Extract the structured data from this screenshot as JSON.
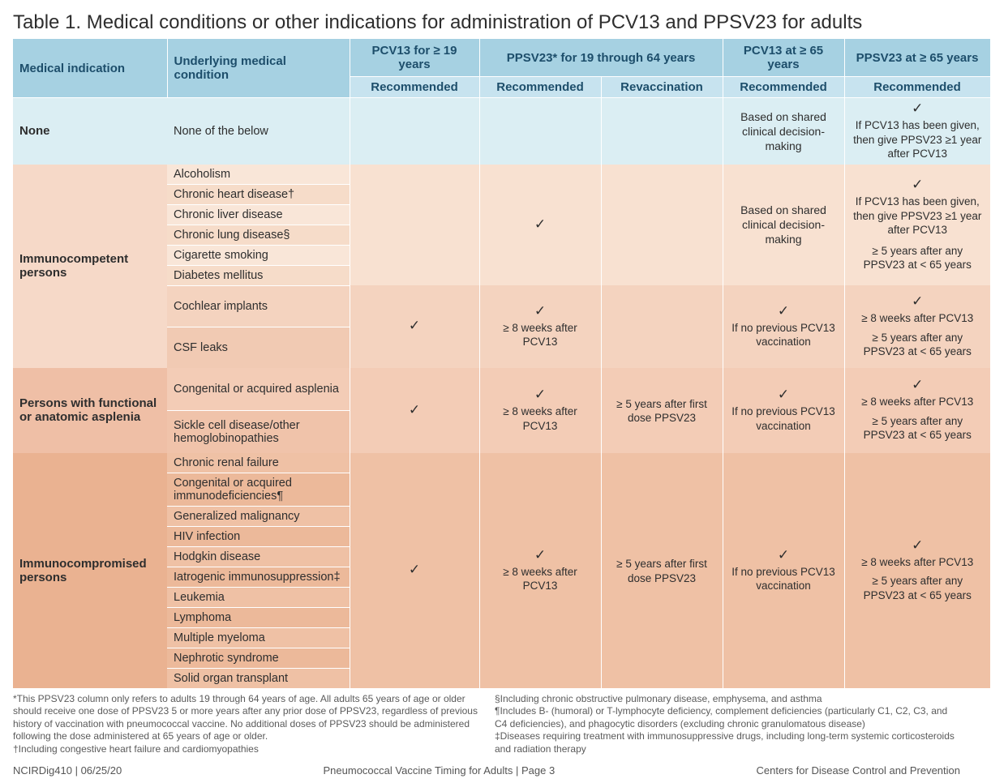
{
  "title": "Table 1. Medical conditions or other indications for administration of PCV13 and PPSV23 for adults",
  "headers": {
    "medical_indication": "Medical indication",
    "underlying": "Underlying medical condition",
    "pcv13_19": "PCV13 for ≥ 19 years",
    "ppsv23_1964": "PPSV23* for 19 through 64 years",
    "pcv13_65": "PCV13 at ≥ 65 years",
    "ppsv23_65": "PPSV23 at ≥ 65 years",
    "recommended": "Recommended",
    "revaccination": "Revaccination"
  },
  "colors": {
    "none_bg": "#dbeef3",
    "immuno_label_bg": "#f6d9c8",
    "immuno_group1_light": "#f9e6d8",
    "immuno_group1_dark": "#f6dcc9",
    "immuno_group1_mid": "#f8e1d1",
    "immuno_group2_light": "#f4d3bf",
    "immuno_group2_dark": "#f1cab3",
    "asplenia_label_bg": "#efbfa6",
    "asplenia_light": "#f3ccb6",
    "asplenia_dark": "#f0c3aa",
    "compromised_label_bg": "#eab291",
    "compromised_light": "#efc1a5",
    "compromised_dark": "#ecb99a"
  },
  "widths": {
    "col_indication": 190,
    "col_condition": 225,
    "col_pcv13_19": 160,
    "col_ppsv23_rec": 150,
    "col_ppsv23_revac": 150,
    "col_pcv13_65": 150,
    "col_ppsv23_65": 180
  },
  "none": {
    "label": "None",
    "condition": "None of the below",
    "pcv13_65": "Based on shared clinical decision-making",
    "ppsv23_65_check": "✓",
    "ppsv23_65_text": "If PCV13 has been given, then give PPSV23 ≥1 year after PCV13"
  },
  "immunocompetent": {
    "label": "Immunocompetent persons",
    "group1": {
      "conditions": [
        "Alcoholism",
        "Chronic heart disease†",
        "Chronic liver disease",
        "Chronic lung disease§",
        "Cigarette smoking",
        "Diabetes mellitus"
      ],
      "ppsv23_1964_rec": "✓",
      "pcv13_65": "Based on shared clinical decision-making",
      "ppsv23_65_check": "✓",
      "ppsv23_65_line1": "If PCV13 has been given, then give PPSV23 ≥1 year after PCV13",
      "ppsv23_65_line2": "≥ 5 years after any PPSV23 at < 65 years"
    },
    "group2": {
      "conditions": [
        "Cochlear implants",
        "CSF leaks"
      ],
      "pcv13_19": "✓",
      "ppsv23_1964_rec_check": "✓",
      "ppsv23_1964_rec_text": "≥ 8 weeks after PCV13",
      "pcv13_65_check": "✓",
      "pcv13_65_text": "If no previous PCV13 vaccination",
      "ppsv23_65_check": "✓",
      "ppsv23_65_line1": "≥ 8 weeks after PCV13",
      "ppsv23_65_line2": "≥ 5 years after any PPSV23 at < 65 years"
    }
  },
  "asplenia": {
    "label": "Persons with functional or anatomic asplenia",
    "conditions": [
      "Congenital or acquired asplenia",
      "Sickle cell disease/other hemoglobinopathies"
    ],
    "pcv13_19": "✓",
    "ppsv23_1964_rec_check": "✓",
    "ppsv23_1964_rec_text": "≥ 8 weeks after PCV13",
    "ppsv23_1964_revac_text": "≥ 5 years after first dose PPSV23",
    "pcv13_65_check": "✓",
    "pcv13_65_text": "If no previous PCV13 vaccination",
    "ppsv23_65_check": "✓",
    "ppsv23_65_line1": "≥ 8 weeks after PCV13",
    "ppsv23_65_line2": "≥ 5 years after any PPSV23 at < 65 years"
  },
  "compromised": {
    "label": "Immunocompromised persons",
    "conditions": [
      "Chronic renal failure",
      "Congenital or acquired immunodeficiencies¶",
      "Generalized malignancy",
      "HIV infection",
      "Hodgkin disease",
      "Iatrogenic immunosuppression‡",
      "Leukemia",
      "Lymphoma",
      "Multiple myeloma",
      "Nephrotic syndrome",
      "Solid organ transplant"
    ],
    "pcv13_19": "✓",
    "ppsv23_1964_rec_check": "✓",
    "ppsv23_1964_rec_text": "≥ 8 weeks after PCV13",
    "ppsv23_1964_revac_text": "≥ 5 years after first dose PPSV23",
    "pcv13_65_check": "✓",
    "pcv13_65_text": "If no previous PCV13 vaccination",
    "ppsv23_65_check": "✓",
    "ppsv23_65_line1": "≥ 8 weeks after PCV13",
    "ppsv23_65_line2": "≥ 5 years after any PPSV23 at < 65 years"
  },
  "footnotes": {
    "left": [
      "*This PPSV23 column only refers to adults 19 through 64 years of age. All adults 65 years of age or older should receive one dose of PPSV23 5 or more years after any prior dose of PPSV23, regardless of previous history of vaccination with pneumococcal vaccine. No additional doses of PPSV23 should be administered following the dose administered at 65 years of age or older.",
      "†Including congestive heart failure and cardiomyopathies"
    ],
    "right": [
      "§Including chronic obstructive pulmonary disease, emphysema, and asthma",
      "¶Includes B- (humoral) or T-lymphocyte deficiency, complement deficiencies (particularly C1, C2, C3, and C4 deficiencies), and phagocytic disorders (excluding chronic granulomatous disease)",
      "‡Diseases requiring treatment with immunosuppressive drugs, including long-term systemic corticosteroids and radiation therapy"
    ]
  },
  "footer": {
    "left": "NCIRDig410 | 06/25/20",
    "center": "Pneumococcal Vaccine Timing for Adults | Page 3",
    "right": "Centers for Disease Control and Prevention"
  }
}
